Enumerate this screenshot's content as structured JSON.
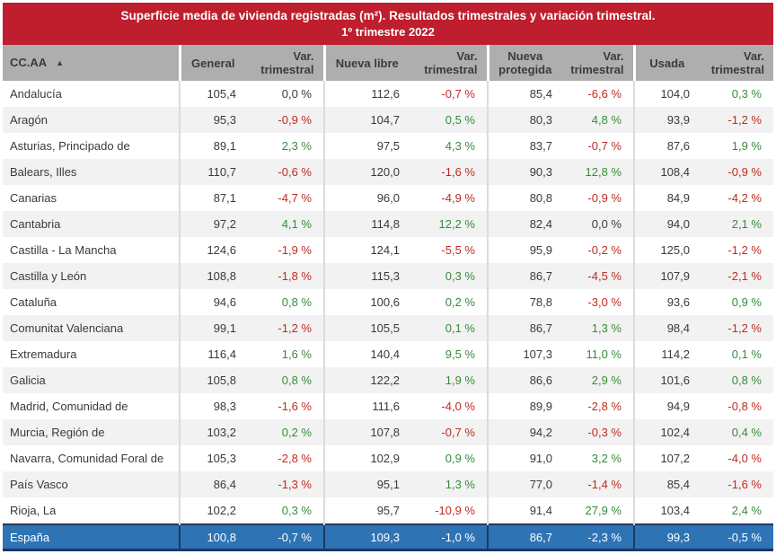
{
  "chart_data": {
    "type": "table",
    "title": "Superficie media de vivienda registradas (m²). Resultados trimestrales  y variación trimestral.",
    "subtitle": "1º trimestre 2022",
    "columns": [
      "CC.AA",
      "General",
      "Var. trimestral",
      "Nueva libre",
      "Var. trimestral",
      "Nueva protegida",
      "Var. trimestral",
      "Usada",
      "Var. trimestral"
    ],
    "rows": [
      [
        "Andalucía",
        "105,4",
        "0,0 %",
        "112,6",
        "-0,7 %",
        "85,4",
        "-6,6 %",
        "104,0",
        "0,3 %"
      ],
      [
        "Aragón",
        "95,3",
        "-0,9 %",
        "104,7",
        "0,5 %",
        "80,3",
        "4,8 %",
        "93,9",
        "-1,2 %"
      ],
      [
        "Asturias, Principado de",
        "89,1",
        "2,3 %",
        "97,5",
        "4,3 %",
        "83,7",
        "-0,7 %",
        "87,6",
        "1,9 %"
      ],
      [
        "Balears, Illes",
        "110,7",
        "-0,6 %",
        "120,0",
        "-1,6 %",
        "90,3",
        "12,8 %",
        "108,4",
        "-0,9 %"
      ],
      [
        "Canarias",
        "87,1",
        "-4,7 %",
        "96,0",
        "-4,9 %",
        "80,8",
        "-0,9 %",
        "84,9",
        "-4,2 %"
      ],
      [
        "Cantabria",
        "97,2",
        "4,1 %",
        "114,8",
        "12,2 %",
        "82,4",
        "0,0 %",
        "94,0",
        "2,1 %"
      ],
      [
        "Castilla - La Mancha",
        "124,6",
        "-1,9 %",
        "124,1",
        "-5,5 %",
        "95,9",
        "-0,2 %",
        "125,0",
        "-1,2 %"
      ],
      [
        "Castilla y León",
        "108,8",
        "-1,8 %",
        "115,3",
        "0,3 %",
        "86,7",
        "-4,5 %",
        "107,9",
        "-2,1 %"
      ],
      [
        "Cataluña",
        "94,6",
        "0,8 %",
        "100,6",
        "0,2 %",
        "78,8",
        "-3,0 %",
        "93,6",
        "0,9 %"
      ],
      [
        "Comunitat Valenciana",
        "99,1",
        "-1,2 %",
        "105,5",
        "0,1 %",
        "86,7",
        "1,3 %",
        "98,4",
        "-1,2 %"
      ],
      [
        "Extremadura",
        "116,4",
        "1,6 %",
        "140,4",
        "9,5 %",
        "107,3",
        "11,0 %",
        "114,2",
        "0,1 %"
      ],
      [
        "Galicia",
        "105,8",
        "0,8 %",
        "122,2",
        "1,9 %",
        "86,6",
        "2,9 %",
        "101,6",
        "0,8 %"
      ],
      [
        "Madrid, Comunidad de",
        "98,3",
        "-1,6 %",
        "111,6",
        "-4,0 %",
        "89,9",
        "-2,8 %",
        "94,9",
        "-0,8 %"
      ],
      [
        "Murcia, Región de",
        "103,2",
        "0,2 %",
        "107,8",
        "-0,7 %",
        "94,2",
        "-0,3 %",
        "102,4",
        "0,4 %"
      ],
      [
        "Navarra, Comunidad Foral de",
        "105,3",
        "-2,8 %",
        "102,9",
        "0,9 %",
        "91,0",
        "3,2 %",
        "107,2",
        "-4,0 %"
      ],
      [
        "País Vasco",
        "86,4",
        "-1,3 %",
        "95,1",
        "1,3 %",
        "77,0",
        "-1,4 %",
        "85,4",
        "-1,6 %"
      ],
      [
        "Rioja, La",
        "102,2",
        "0,3 %",
        "95,7",
        "-10,9 %",
        "91,4",
        "27,9 %",
        "103,4",
        "2,4 %"
      ]
    ],
    "total_row": [
      "España",
      "100,8",
      "-0,7 %",
      "109,3",
      "-1,0 %",
      "86,7",
      "-2,3 %",
      "99,3",
      "-0,5 %"
    ],
    "value_format": "decimal comma, variations as signed percent",
    "color_rule": "negative variation red, positive green, 0,0 % neutral black"
  },
  "ui": {
    "sort_icon": "▲",
    "colors": {
      "banner_red": "#BE1E2D",
      "header_gray": "#AEAEAE",
      "total_blue": "#2E74B5",
      "total_border": "#1F3864",
      "positive_green": "#378C37",
      "negative_red": "#C02B20",
      "zebra_gray": "#F2F2F2"
    }
  }
}
